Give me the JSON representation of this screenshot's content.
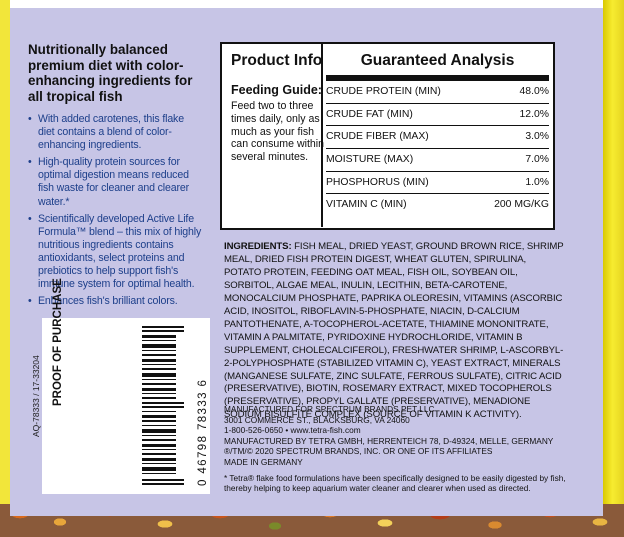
{
  "headline": "Nutritionally balanced premium diet with color-enhancing ingredients for all tropical fish",
  "bullets": [
    "With added carotenes, this flake diet contains a blend of color-enhancing ingredients.",
    "High-quality protein sources for optimal digestion means reduced fish waste for cleaner and clearer water.*",
    "Scientifically developed Active Life Formula™ blend – this mix of highly nutritious ingredients contains antioxidants, select proteins and prebiotics to help support fish's immune system for optimal health.",
    "Enhances fish's brilliant colors."
  ],
  "barcode": {
    "lot": "AQ-78333 / 17-33204",
    "label": "PROOF OF PURCHASE",
    "upc": "0 46798 78333 6"
  },
  "product_info": {
    "title": "Product Info",
    "feeding_title": "Feeding Guide:",
    "feeding_text": "Feed two to three times daily, only as much as your fish can consume within several minutes."
  },
  "analysis": {
    "title": "Guaranteed Analysis",
    "rows": [
      {
        "name": "CRUDE PROTEIN (MIN)",
        "value": "48.0%"
      },
      {
        "name": "CRUDE FAT (MIN)",
        "value": "12.0%"
      },
      {
        "name": "CRUDE FIBER (MAX)",
        "value": "3.0%"
      },
      {
        "name": "MOISTURE (MAX)",
        "value": "7.0%"
      },
      {
        "name": "PHOSPHORUS (MIN)",
        "value": "1.0%"
      },
      {
        "name": "VITAMIN C (MIN)",
        "value": "200 MG/KG"
      }
    ]
  },
  "ingredients": {
    "label": "INGREDIENTS:",
    "text": " FISH MEAL, DRIED YEAST, GROUND BROWN RICE, SHRIMP MEAL, DRIED FISH PROTEIN DIGEST, WHEAT GLUTEN, SPIRULINA, POTATO PROTEIN, FEEDING OAT MEAL, FISH OIL, SOYBEAN OIL, SORBITOL, ALGAE MEAL, INULIN, LECITHIN, BETA-CAROTENE, MONOCALCIUM PHOSPHATE, PAPRIKA OLEORESIN, VITAMINS (ASCORBIC ACID, INOSITOL, RIBOFLAVIN-5-PHOSPHATE, NIACIN, D-CALCIUM PANTOTHENATE, A-TOCOPHEROL-ACETATE, THIAMINE MONONITRATE, VITAMIN A PALMITATE, PYRIDOXINE HYDROCHLORIDE, VITAMIN B SUPPLEMENT, CHOLECALCIFEROL), FRESHWATER SHRIMP, L-ASCORBYL-2-POLYPHOSPHATE (STABILIZED VITAMIN C), YEAST EXTRACT, MINERALS (MANGANESE SULFATE, ZINC SULFATE, FERROUS SULFATE), CITRIC ACID (PRESERVATIVE), BIOTIN, ROSEMARY EXTRACT, MIXED TOCOPHEROLS (PRESERVATIVE), PROPYL GALLATE (PRESERVATIVE), MENADIONE SODIUM BISULFITE COMPLEX (SOURCE OF VITAMIN K ACTIVITY)."
  },
  "manufacturer": [
    "MANUFACTURED FOR SPECTRUM BRANDS PET LLC",
    "3001 COMMERCE ST., BLACKSBURG, VA 24060",
    "1-800-526-0650 • www.tetra-fish.com",
    "MANUFACTURED BY TETRA GMBH, HERRENTEICH 78, D-49324, MELLE, GERMANY",
    "®/TM/© 2020 SPECTRUM BRANDS, INC. OR ONE OF ITS AFFILIATES",
    "MADE IN GERMANY"
  ],
  "footnote": "* Tetra® flake food formulations have been specifically designed to be easily digested by fish, thereby helping to keep aquarium water cleaner and clearer when used as directed.",
  "colors": {
    "panel": "#c7c5e6",
    "bullet_text": "#1d3f8a",
    "stripe": "#f2e63a"
  }
}
